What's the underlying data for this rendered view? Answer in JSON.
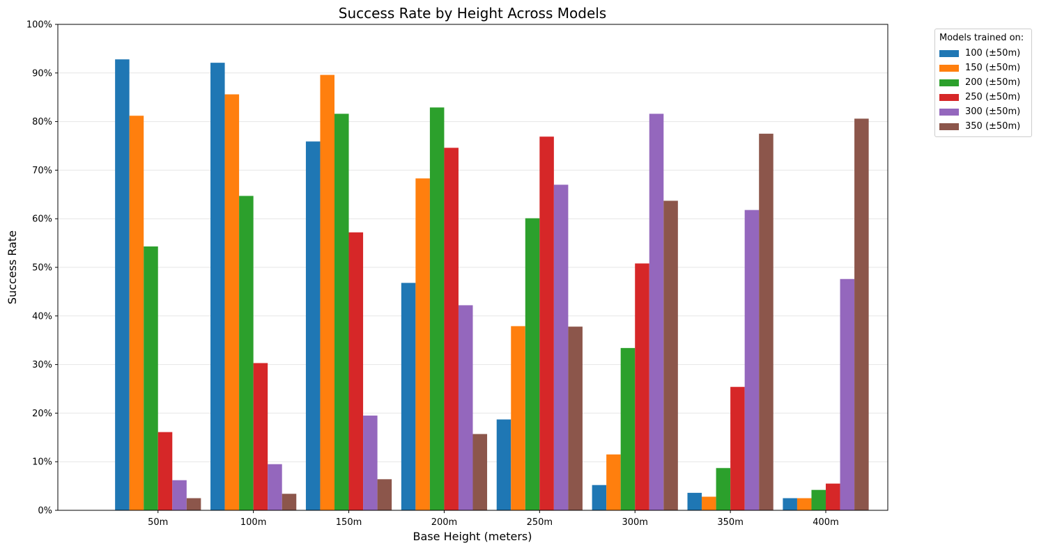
{
  "chart_data": {
    "type": "bar",
    "title": "Success Rate by Height Across Models",
    "xlabel": "Base Height (meters)",
    "ylabel": "Success Rate",
    "categories": [
      "50m",
      "100m",
      "150m",
      "200m",
      "250m",
      "300m",
      "350m",
      "400m"
    ],
    "ylim": [
      0,
      100
    ],
    "yticks": [
      0,
      10,
      20,
      30,
      40,
      50,
      60,
      70,
      80,
      90,
      100
    ],
    "ytick_labels": [
      "0%",
      "10%",
      "20%",
      "30%",
      "40%",
      "50%",
      "60%",
      "70%",
      "80%",
      "90%",
      "100%"
    ],
    "grid": "horizontal",
    "legend": {
      "title": "Models trained on:",
      "placement": "outside-right"
    },
    "series": [
      {
        "name": "100 (±50m)",
        "color": "#1f77b4",
        "values": [
          92.8,
          92.1,
          75.9,
          46.8,
          18.7,
          5.2,
          3.6,
          2.5
        ]
      },
      {
        "name": "150 (±50m)",
        "color": "#ff7f0e",
        "values": [
          81.2,
          85.6,
          89.6,
          68.3,
          37.9,
          11.5,
          2.8,
          2.5
        ]
      },
      {
        "name": "200 (±50m)",
        "color": "#2ca02c",
        "values": [
          54.3,
          64.7,
          81.6,
          82.9,
          60.1,
          33.4,
          8.7,
          4.2
        ]
      },
      {
        "name": "250 (±50m)",
        "color": "#d62728",
        "values": [
          16.1,
          30.3,
          57.2,
          74.6,
          76.9,
          50.8,
          25.4,
          5.5
        ]
      },
      {
        "name": "300 (±50m)",
        "color": "#9467bd",
        "values": [
          6.2,
          9.5,
          19.5,
          42.2,
          67.0,
          81.6,
          61.8,
          47.6
        ]
      },
      {
        "name": "350 (±50m)",
        "color": "#8c564b",
        "values": [
          2.5,
          3.4,
          6.4,
          15.7,
          37.8,
          63.7,
          77.5,
          80.6
        ]
      }
    ]
  }
}
